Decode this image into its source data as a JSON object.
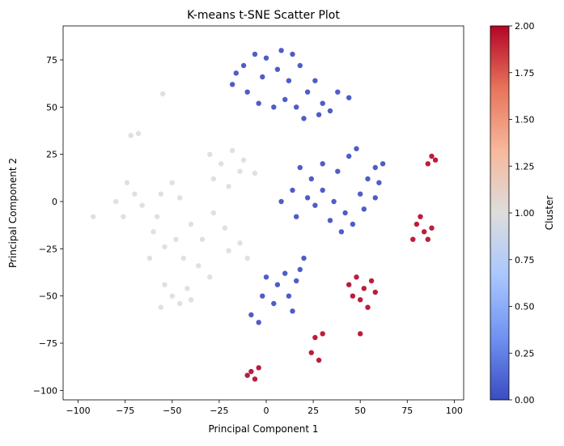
{
  "chart_data": {
    "type": "scatter",
    "title": "K-means t-SNE Scatter Plot",
    "xlabel": "Principal Component 1",
    "ylabel": "Principal Component 2",
    "xlim": [
      -108,
      105
    ],
    "ylim": [
      -105,
      93
    ],
    "xticks": [
      -100,
      -75,
      -50,
      -25,
      0,
      25,
      50,
      75,
      100
    ],
    "yticks": [
      -100,
      -75,
      -50,
      -25,
      0,
      25,
      50,
      75
    ],
    "grid": false,
    "colorbar": {
      "label": "Cluster",
      "range": [
        0.0,
        2.0
      ],
      "ticks": [
        "0.00",
        "0.25",
        "0.50",
        "0.75",
        "1.00",
        "1.25",
        "1.50",
        "1.75",
        "2.00"
      ],
      "colormap": "coolwarm",
      "stops": [
        "#3b4cc0",
        "#6f92f3",
        "#aac7fd",
        "#dddddd",
        "#f7b89c",
        "#e7745b",
        "#b40426"
      ]
    },
    "cluster_colors": {
      "0": "#3b4cc0",
      "1": "#dddddd",
      "2": "#b40426"
    },
    "series": [
      {
        "cluster": 0,
        "color": "#3b4cc0",
        "points": [
          [
            -18,
            62
          ],
          [
            -12,
            72
          ],
          [
            -6,
            78
          ],
          [
            0,
            76
          ],
          [
            6,
            70
          ],
          [
            12,
            64
          ],
          [
            18,
            72
          ],
          [
            -10,
            58
          ],
          [
            -4,
            52
          ],
          [
            4,
            50
          ],
          [
            10,
            54
          ],
          [
            16,
            50
          ],
          [
            22,
            58
          ],
          [
            26,
            64
          ],
          [
            30,
            52
          ],
          [
            34,
            48
          ],
          [
            38,
            58
          ],
          [
            44,
            55
          ],
          [
            -2,
            66
          ],
          [
            8,
            80
          ],
          [
            14,
            78
          ],
          [
            -16,
            68
          ],
          [
            20,
            44
          ],
          [
            28,
            46
          ],
          [
            18,
            18
          ],
          [
            24,
            12
          ],
          [
            30,
            6
          ],
          [
            36,
            0
          ],
          [
            42,
            -6
          ],
          [
            46,
            -12
          ],
          [
            50,
            4
          ],
          [
            54,
            12
          ],
          [
            58,
            18
          ],
          [
            62,
            20
          ],
          [
            44,
            24
          ],
          [
            38,
            16
          ],
          [
            30,
            20
          ],
          [
            22,
            2
          ],
          [
            14,
            6
          ],
          [
            8,
            0
          ],
          [
            16,
            -8
          ],
          [
            26,
            -2
          ],
          [
            34,
            -10
          ],
          [
            40,
            -16
          ],
          [
            52,
            -4
          ],
          [
            58,
            2
          ],
          [
            60,
            10
          ],
          [
            48,
            28
          ],
          [
            0,
            -40
          ],
          [
            6,
            -44
          ],
          [
            12,
            -50
          ],
          [
            16,
            -42
          ],
          [
            4,
            -54
          ],
          [
            -2,
            -50
          ],
          [
            -8,
            -60
          ],
          [
            -4,
            -64
          ],
          [
            10,
            -38
          ],
          [
            18,
            -36
          ],
          [
            20,
            -30
          ],
          [
            14,
            -58
          ]
        ]
      },
      {
        "cluster": 1,
        "color": "#dddddd",
        "points": [
          [
            -55,
            57
          ],
          [
            -68,
            36
          ],
          [
            -72,
            35
          ],
          [
            -30,
            25
          ],
          [
            -24,
            20
          ],
          [
            -18,
            27
          ],
          [
            -12,
            22
          ],
          [
            -6,
            15
          ],
          [
            -28,
            12
          ],
          [
            -20,
            8
          ],
          [
            -14,
            16
          ],
          [
            -74,
            10
          ],
          [
            -80,
            0
          ],
          [
            -76,
            -8
          ],
          [
            -70,
            4
          ],
          [
            -66,
            -2
          ],
          [
            -92,
            -8
          ],
          [
            -50,
            10
          ],
          [
            -56,
            4
          ],
          [
            -46,
            2
          ],
          [
            -60,
            -16
          ],
          [
            -54,
            -24
          ],
          [
            -40,
            -12
          ],
          [
            -34,
            -20
          ],
          [
            -28,
            -6
          ],
          [
            -22,
            -14
          ],
          [
            -44,
            -30
          ],
          [
            -36,
            -34
          ],
          [
            -30,
            -40
          ],
          [
            -20,
            -26
          ],
          [
            -14,
            -22
          ],
          [
            -10,
            -30
          ],
          [
            -62,
            -30
          ],
          [
            -58,
            -8
          ],
          [
            -48,
            -20
          ],
          [
            -42,
            -46
          ],
          [
            -50,
            -50
          ],
          [
            -56,
            -56
          ],
          [
            -46,
            -54
          ],
          [
            -40,
            -52
          ],
          [
            -54,
            -44
          ]
        ]
      },
      {
        "cluster": 2,
        "color": "#b40426",
        "points": [
          [
            88,
            24
          ],
          [
            90,
            22
          ],
          [
            86,
            20
          ],
          [
            80,
            -12
          ],
          [
            84,
            -16
          ],
          [
            86,
            -20
          ],
          [
            82,
            -8
          ],
          [
            78,
            -20
          ],
          [
            88,
            -14
          ],
          [
            44,
            -44
          ],
          [
            48,
            -40
          ],
          [
            52,
            -46
          ],
          [
            56,
            -42
          ],
          [
            50,
            -52
          ],
          [
            54,
            -56
          ],
          [
            58,
            -48
          ],
          [
            46,
            -50
          ],
          [
            26,
            -72
          ],
          [
            24,
            -80
          ],
          [
            28,
            -84
          ],
          [
            30,
            -70
          ],
          [
            50,
            -70
          ],
          [
            -8,
            -90
          ],
          [
            -4,
            -88
          ],
          [
            -10,
            -92
          ],
          [
            -6,
            -94
          ]
        ]
      }
    ]
  }
}
